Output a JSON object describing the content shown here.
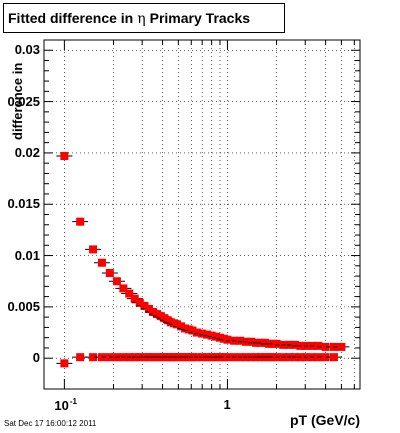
{
  "title": {
    "prefix": "Fitted difference in",
    "symbol": "η",
    "suffix": "Primary Tracks"
  },
  "timestamp": "Sat Dec 17 16:00:12 2011",
  "chart_data": {
    "type": "scatter",
    "xlabel": "pT (GeV/c)",
    "ylabel": "difference in",
    "x_scale": "log",
    "xlim": [
      0.075,
      6.5
    ],
    "ylim": [
      -0.003,
      0.031
    ],
    "grid": true,
    "yticks": [
      {
        "value": 0.03,
        "label": "0.03"
      },
      {
        "value": 0.025,
        "label": "0.025"
      },
      {
        "value": 0.02,
        "label": "0.02"
      },
      {
        "value": 0.015,
        "label": "0.015"
      },
      {
        "value": 0.01,
        "label": "0.01"
      },
      {
        "value": 0.005,
        "label": "0.005"
      },
      {
        "value": 0,
        "label": "0"
      }
    ],
    "xticks": [
      {
        "value": 0.1,
        "base": "10",
        "exponent": "-1"
      },
      {
        "value": 1,
        "base": "1",
        "exponent": ""
      }
    ],
    "series": [
      {
        "color": "#ff0000",
        "x": [
          0.1,
          0.125,
          0.15,
          0.17,
          0.19,
          0.21,
          0.23,
          0.25,
          0.27,
          0.29,
          0.31,
          0.33,
          0.35,
          0.37,
          0.39,
          0.41,
          0.43,
          0.45,
          0.47,
          0.49,
          0.52,
          0.55,
          0.58,
          0.61,
          0.65,
          0.7,
          0.75,
          0.8,
          0.85,
          0.9,
          0.95,
          1.0,
          1.1,
          1.2,
          1.3,
          1.4,
          1.5,
          1.6,
          1.7,
          1.8,
          1.9,
          2.0,
          2.2,
          2.4,
          2.6,
          2.8,
          3.0,
          3.3,
          3.6,
          4.0,
          4.5,
          5.0
        ],
        "y": [
          0.0197,
          0.0133,
          0.0106,
          0.0093,
          0.0083,
          0.0075,
          0.0068,
          0.0063,
          0.0058,
          0.0054,
          0.0051,
          0.0048,
          0.0045,
          0.0043,
          0.0041,
          0.0039,
          0.0037,
          0.0035,
          0.0034,
          0.0033,
          0.0031,
          0.0029,
          0.0028,
          0.0027,
          0.0025,
          0.0024,
          0.0023,
          0.0022,
          0.0021,
          0.002,
          0.0019,
          0.0018,
          0.0017,
          0.0017,
          0.0016,
          0.0016,
          0.0015,
          0.0015,
          0.0015,
          0.0014,
          0.0014,
          0.0014,
          0.0013,
          0.0013,
          0.0013,
          0.0012,
          0.0012,
          0.0012,
          0.0012,
          0.0011,
          0.0011,
          0.0011
        ]
      },
      {
        "color": "#ff0000",
        "outline": "#000000",
        "x": [
          0.1,
          0.125,
          0.15,
          0.17,
          0.19,
          0.21,
          0.23,
          0.25,
          0.27,
          0.29,
          0.31,
          0.33,
          0.35,
          0.37,
          0.39,
          0.41,
          0.43,
          0.45,
          0.47,
          0.49,
          0.52,
          0.55,
          0.58,
          0.61,
          0.65,
          0.7,
          0.75,
          0.8,
          0.85,
          0.9,
          0.95,
          1.0,
          1.1,
          1.2,
          1.3,
          1.4,
          1.5,
          1.6,
          1.7,
          1.8,
          1.9,
          2.0,
          2.2,
          2.4,
          2.6,
          2.8,
          3.0,
          3.3,
          3.6,
          4.0,
          4.5
        ],
        "y": [
          -0.0005,
          0.0001,
          0.0001,
          0.0001,
          0.0001,
          0.0001,
          0.0001,
          0.0001,
          0.0001,
          0.0001,
          0.0001,
          0.0001,
          0.0001,
          0.0001,
          0.0001,
          0.0001,
          0.0001,
          0.0001,
          0.0001,
          0.0001,
          0.0001,
          0.0001,
          0.0001,
          0.0001,
          0.0001,
          0.0001,
          0.0001,
          0.0001,
          0.0001,
          0.0001,
          0.0001,
          0.0001,
          0.0001,
          0.0001,
          0.0001,
          0.0001,
          0.0001,
          0.0001,
          0.0001,
          0.0001,
          0.0001,
          0.0001,
          0.0001,
          0.0001,
          0.0001,
          0.0001,
          0.0001,
          0.0001,
          0.0001,
          0.0001,
          0.0001
        ]
      }
    ]
  }
}
